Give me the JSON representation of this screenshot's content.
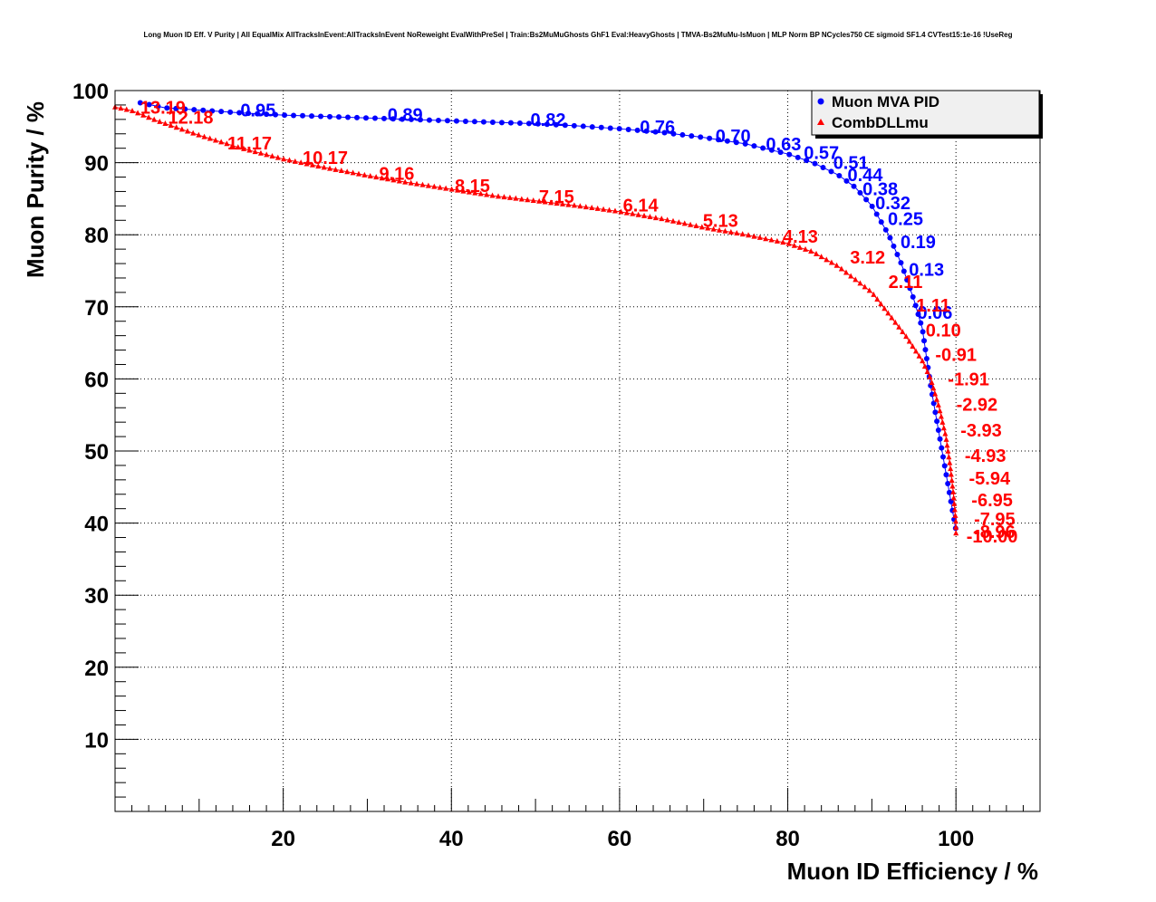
{
  "chart_data": {
    "type": "line",
    "title": "Long Muon ID Eff. V Purity | All EqualMix AllTracksInEvent:AllTracksInEvent NoReweight EvalWithPreSel | Train:Bs2MuMuGhosts GhF1 Eval:HeavyGhosts | TMVA-Bs2MuMu-IsMuon | MLP Norm BP NCycles750 CE sigmoid SF1.4 CVTest15:1e-16 !UseReg",
    "xlabel": "Muon ID Efficiency / %",
    "ylabel": "Muon Purity / %",
    "xlim": [
      0,
      110
    ],
    "ylim": [
      0,
      100
    ],
    "xticks": [
      20,
      40,
      60,
      80,
      100
    ],
    "yticks": [
      10,
      20,
      30,
      40,
      50,
      60,
      70,
      80,
      90,
      100
    ],
    "grid": true,
    "legend_position": "top-right",
    "series": [
      {
        "name": "Muon MVA PID",
        "color": "#0000ff",
        "marker": "circle",
        "curve": [
          [
            3,
            98.3
          ],
          [
            6,
            97.6
          ],
          [
            10,
            97.3
          ],
          [
            15,
            96.9
          ],
          [
            20,
            96.6
          ],
          [
            25,
            96.4
          ],
          [
            30,
            96.2
          ],
          [
            35,
            96.0
          ],
          [
            40,
            95.8
          ],
          [
            45,
            95.6
          ],
          [
            50,
            95.4
          ],
          [
            55,
            95.1
          ],
          [
            60,
            94.7
          ],
          [
            65,
            94.2
          ],
          [
            70,
            93.5
          ],
          [
            75,
            92.6
          ],
          [
            80,
            91.2
          ],
          [
            83,
            90.0
          ],
          [
            86,
            88.3
          ],
          [
            88,
            86.6
          ],
          [
            90,
            84.0
          ],
          [
            92,
            80.0
          ],
          [
            93.5,
            76.0
          ],
          [
            95,
            71.0
          ],
          [
            96,
            67.0
          ],
          [
            96.5,
            63.0
          ],
          [
            97,
            59.0
          ],
          [
            97.6,
            55.0
          ],
          [
            98.2,
            51.0
          ],
          [
            98.8,
            47.0
          ],
          [
            99.4,
            43.0
          ],
          [
            100,
            39.0
          ],
          [
            100,
            38.5
          ]
        ],
        "labels": [
          {
            "text": "0.95",
            "x": 17,
            "y": 97.3
          },
          {
            "text": "0.89",
            "x": 34.5,
            "y": 96.7
          },
          {
            "text": "0.82",
            "x": 51.5,
            "y": 96.0
          },
          {
            "text": "0.76",
            "x": 64.5,
            "y": 95.0
          },
          {
            "text": "0.70",
            "x": 73.5,
            "y": 93.7
          },
          {
            "text": "0.63",
            "x": 79.5,
            "y": 92.6
          },
          {
            "text": "0.57",
            "x": 84,
            "y": 91.4
          },
          {
            "text": "0.51",
            "x": 87.5,
            "y": 90.0
          },
          {
            "text": "0.44",
            "x": 89.2,
            "y": 88.3
          },
          {
            "text": "0.38",
            "x": 91,
            "y": 86.4
          },
          {
            "text": "0.32",
            "x": 92.5,
            "y": 84.4
          },
          {
            "text": "0.25",
            "x": 94,
            "y": 82.2
          },
          {
            "text": "0.19",
            "x": 95.5,
            "y": 79.0
          },
          {
            "text": "0.13",
            "x": 96.5,
            "y": 75.2
          },
          {
            "text": "0.06",
            "x": 97.5,
            "y": 69.2
          }
        ]
      },
      {
        "name": "CombDLLmu",
        "color": "#ff0000",
        "marker": "triangle",
        "curve": [
          [
            0,
            97.7
          ],
          [
            2,
            97.2
          ],
          [
            5,
            95.8
          ],
          [
            10,
            93.8
          ],
          [
            15,
            92.0
          ],
          [
            20,
            90.5
          ],
          [
            25,
            89.3
          ],
          [
            30,
            88.2
          ],
          [
            35,
            87.2
          ],
          [
            40,
            86.3
          ],
          [
            45,
            85.4
          ],
          [
            50,
            84.7
          ],
          [
            55,
            84.0
          ],
          [
            60,
            83.2
          ],
          [
            65,
            82.2
          ],
          [
            70,
            81.0
          ],
          [
            75,
            80.0
          ],
          [
            80,
            78.8
          ],
          [
            83,
            77.6
          ],
          [
            86,
            75.6
          ],
          [
            88,
            73.8
          ],
          [
            90,
            72.0
          ],
          [
            92,
            69.0
          ],
          [
            94,
            66.0
          ],
          [
            96,
            62.5
          ],
          [
            97,
            60.0
          ],
          [
            98,
            56.0
          ],
          [
            98.8,
            52.0
          ],
          [
            99.3,
            48.0
          ],
          [
            99.7,
            44.0
          ],
          [
            100,
            40.0
          ],
          [
            100,
            38.5
          ]
        ],
        "labels": [
          {
            "text": "13.19",
            "x": 5.7,
            "y": 97.7
          },
          {
            "text": "12.18",
            "x": 9,
            "y": 96.3
          },
          {
            "text": "11.17",
            "x": 16,
            "y": 92.7
          },
          {
            "text": "10.17",
            "x": 25,
            "y": 90.7
          },
          {
            "text": "9.16",
            "x": 33.5,
            "y": 88.5
          },
          {
            "text": "8.15",
            "x": 42.5,
            "y": 86.8
          },
          {
            "text": "7.15",
            "x": 52.5,
            "y": 85.3
          },
          {
            "text": "6.14",
            "x": 62.5,
            "y": 84.1
          },
          {
            "text": "5.13",
            "x": 72,
            "y": 82.0
          },
          {
            "text": "4.13",
            "x": 81.5,
            "y": 79.8
          },
          {
            "text": "3.12",
            "x": 89.5,
            "y": 76.9
          },
          {
            "text": "2.11",
            "x": 94,
            "y": 73.5
          },
          {
            "text": "1.11",
            "x": 97.3,
            "y": 70.2
          },
          {
            "text": "0.10",
            "x": 98.5,
            "y": 66.8
          },
          {
            "text": "-0.91",
            "x": 100,
            "y": 63.4
          },
          {
            "text": "-1.91",
            "x": 101.5,
            "y": 60.0
          },
          {
            "text": "-2.92",
            "x": 102.5,
            "y": 56.5
          },
          {
            "text": "-3.93",
            "x": 103,
            "y": 52.9
          },
          {
            "text": "-4.93",
            "x": 103.5,
            "y": 49.4
          },
          {
            "text": "-5.94",
            "x": 104,
            "y": 46.2
          },
          {
            "text": "-6.95",
            "x": 104.3,
            "y": 43.2
          },
          {
            "text": "-7.95",
            "x": 104.6,
            "y": 40.6
          },
          {
            "text": "-8.96",
            "x": 104.6,
            "y": 38.8
          },
          {
            "text": "-10.00",
            "x": 104.3,
            "y": 38.2
          }
        ]
      }
    ]
  }
}
